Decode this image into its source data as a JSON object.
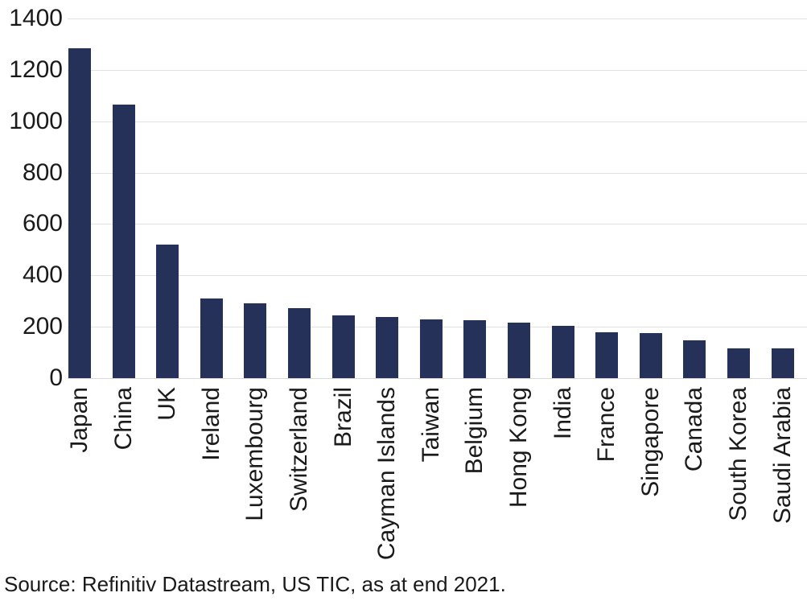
{
  "chart_data": {
    "type": "bar",
    "categories": [
      "Japan",
      "China",
      "UK",
      "Ireland",
      "Luxembourg",
      "Switzerland",
      "Brazil",
      "Cayman Islands",
      "Taiwan",
      "Belgium",
      "Hong Kong",
      "India",
      "France",
      "Singapore",
      "Canada",
      "South Korea",
      "Saudi Arabia"
    ],
    "values": [
      1285,
      1065,
      520,
      311,
      290,
      271,
      244,
      238,
      230,
      227,
      217,
      205,
      177,
      175,
      146,
      117,
      116
    ],
    "title": "",
    "xlabel": "",
    "ylabel": "",
    "ylim": [
      0,
      1400
    ],
    "yticks": [
      0,
      200,
      400,
      600,
      800,
      1000,
      1200,
      1400
    ],
    "grid": true,
    "legend": "none",
    "bar_color": "#253158",
    "gridline_color": "#e2e2e2",
    "text_color": "#1a1a1a",
    "source_note": "Source: Refinitiv Datastream, US TIC, as at end 2021."
  }
}
